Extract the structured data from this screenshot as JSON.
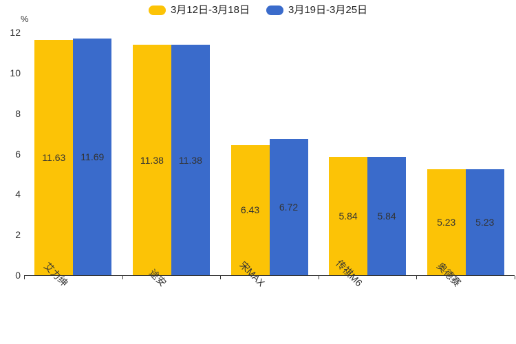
{
  "legend": {
    "items": [
      {
        "label": "3月12日-3月18日",
        "color": "#FCC306"
      },
      {
        "label": "3月19日-3月25日",
        "color": "#3A6BCB"
      }
    ]
  },
  "chart_data": {
    "type": "bar",
    "title": "",
    "categories": [
      "艾力绅",
      "途安",
      "宋MAX",
      "传祺M6",
      "奥德赛"
    ],
    "series": [
      {
        "name": "3月12日-3月18日",
        "color": "#FCC306",
        "values": [
          11.63,
          11.38,
          6.43,
          5.84,
          5.23
        ]
      },
      {
        "name": "3月19日-3月25日",
        "color": "#3A6BCB",
        "values": [
          11.69,
          11.38,
          6.72,
          5.84,
          5.23
        ]
      }
    ],
    "xlabel": "",
    "ylabel": "%",
    "ylim": [
      0,
      12
    ],
    "yticks": [
      0,
      2,
      4,
      6,
      8,
      10,
      12
    ],
    "grid": false,
    "legend_position": "top",
    "value_labels": "inside-middle",
    "value_label_color": "#333333",
    "xlabel_rotation": 45,
    "text_color": "#333333",
    "axis_color": "#333333",
    "background_color": "#ffffff"
  }
}
